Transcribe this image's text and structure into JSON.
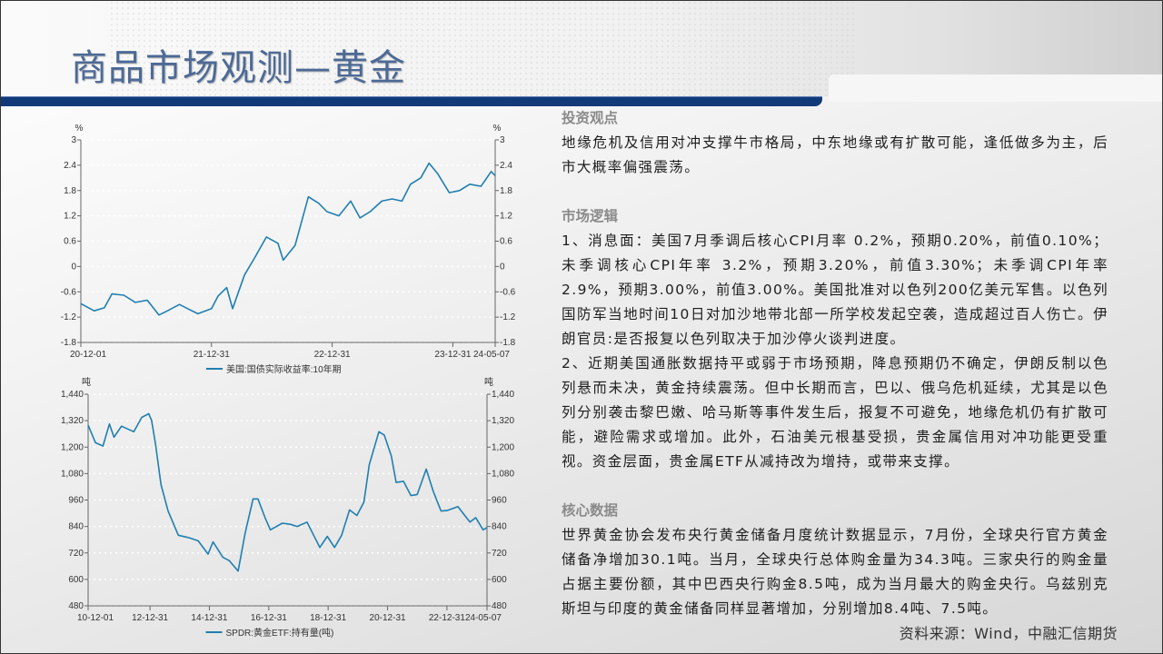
{
  "title": "商品市场观测—黄金",
  "sections": [
    {
      "heading": "投资观点",
      "paragraphs": [
        "地缘危机及信用对冲支撑牛市格局，中东地缘或有扩散可能，逢低做多为主，后市大概率偏强震荡。"
      ]
    },
    {
      "heading": "市场逻辑",
      "paragraphs": [
        "1、消息面：美国7月季调后核心CPI月率 0.2%，预期0.20%，前值0.10%；未季调核心CPI年率 3.2%，预期3.20%，前值3.30%；未季调CPI年率 2.9%，预期3.00%，前值3.00%。美国批准对以色列200亿美元军售。以色列国防军当地时间10日对加沙地带北部一所学校发起空袭，造成超过百人伤亡。伊朗官员:是否报复以色列取决于加沙停火谈判进度。",
        "2、近期美国通胀数据持平或弱于市场预期，降息预期仍不确定，伊朗反制以色列悬而未决，黄金持续震荡。但中长期而言，巴以、俄乌危机延续，尤其是以色列分别袭击黎巴嫩、哈马斯等事件发生后，报复不可避免，地缘危机仍有扩散可能，避险需求或增加。此外，石油美元根基受损，贵金属信用对冲功能更受重视。资金层面，贵金属ETF从减持改为增持，或带来支撑。"
      ]
    },
    {
      "heading": "核心数据",
      "paragraphs": [
        "世界黄金协会发布央行黄金储备月度统计数据显示，7月份，全球央行官方黄金储备净增加30.1吨。当月，全球央行总体购金量为34.3吨。三家央行的购金量占据主要份额，其中巴西央行购金8.5吨，成为当月最大的购金央行。乌兹别克斯坦与印度的黄金储备同样显著增加，分别增加8.4吨、7.5吨。"
      ]
    }
  ],
  "source": "资料来源：Wind，中融汇信期货",
  "colors": {
    "title": "#4d6a96",
    "title_bar": "#133a78",
    "series": "#1f7fb0"
  },
  "chart_data": [
    {
      "type": "line",
      "unit_left": "%",
      "unit_right": "%",
      "ylim": [
        -1.8,
        3
      ],
      "y_ticks": [
        -1.8,
        -1.2,
        -0.6,
        0,
        0.6,
        1.2,
        1.8,
        2.4,
        3
      ],
      "y_tick_labels": [
        "-1.8",
        "-1.2",
        "-0.6",
        "0",
        "0.6",
        "1.2",
        "1.8",
        "2.4",
        "3"
      ],
      "xlim": [
        "2020-12-01",
        "2024-05-07"
      ],
      "x_ticks": [
        {
          "date": "2020-12-01",
          "label": "20-12-01"
        },
        {
          "date": "2021-12-31",
          "label": "21-12-31"
        },
        {
          "date": "2022-12-31",
          "label": "22-12-31"
        },
        {
          "date": "2023-12-31",
          "label": "23-12-31"
        },
        {
          "date": "2024-05-07",
          "label": "24-05-07"
        }
      ],
      "grid": true,
      "legend_position": "bottom",
      "series": [
        {
          "name": "美国:国债实际收益率:10年期",
          "points": [
            [
              "2020-12-01",
              -0.88
            ],
            [
              "2021-01-10",
              -1.05
            ],
            [
              "2021-02-10",
              -0.98
            ],
            [
              "2021-03-05",
              -0.65
            ],
            [
              "2021-04-10",
              -0.68
            ],
            [
              "2021-05-15",
              -0.85
            ],
            [
              "2021-06-20",
              -0.8
            ],
            [
              "2021-07-25",
              -1.15
            ],
            [
              "2021-08-20",
              -1.05
            ],
            [
              "2021-09-25",
              -0.9
            ],
            [
              "2021-10-20",
              -1.0
            ],
            [
              "2021-11-20",
              -1.12
            ],
            [
              "2021-12-31",
              -1.0
            ],
            [
              "2022-01-20",
              -0.7
            ],
            [
              "2022-02-15",
              -0.5
            ],
            [
              "2022-03-05",
              -1.0
            ],
            [
              "2022-04-10",
              -0.2
            ],
            [
              "2022-05-10",
              0.2
            ],
            [
              "2022-06-15",
              0.7
            ],
            [
              "2022-07-20",
              0.55
            ],
            [
              "2022-08-05",
              0.15
            ],
            [
              "2022-09-10",
              0.5
            ],
            [
              "2022-10-20",
              1.65
            ],
            [
              "2022-11-20",
              1.5
            ],
            [
              "2022-12-15",
              1.3
            ],
            [
              "2023-01-20",
              1.2
            ],
            [
              "2023-02-25",
              1.55
            ],
            [
              "2023-03-25",
              1.15
            ],
            [
              "2023-04-25",
              1.3
            ],
            [
              "2023-05-30",
              1.55
            ],
            [
              "2023-06-30",
              1.6
            ],
            [
              "2023-07-30",
              1.55
            ],
            [
              "2023-08-25",
              1.95
            ],
            [
              "2023-09-25",
              2.1
            ],
            [
              "2023-10-20",
              2.45
            ],
            [
              "2023-11-15",
              2.2
            ],
            [
              "2023-12-20",
              1.75
            ],
            [
              "2024-01-20",
              1.8
            ],
            [
              "2024-02-20",
              1.95
            ],
            [
              "2024-03-25",
              1.9
            ],
            [
              "2024-04-25",
              2.25
            ],
            [
              "2024-05-07",
              2.15
            ]
          ]
        }
      ]
    },
    {
      "type": "line",
      "unit_left": "吨",
      "unit_right": "吨",
      "ylim": [
        480,
        1440
      ],
      "y_ticks": [
        480,
        600,
        720,
        840,
        960,
        1080,
        1200,
        1320,
        1440
      ],
      "y_tick_labels": [
        "480",
        "600",
        "720",
        "840",
        "960",
        "1,080",
        "1,200",
        "1,320",
        "1,440"
      ],
      "xlim": [
        "2010-12-01",
        "2024-05-07"
      ],
      "x_ticks": [
        {
          "date": "2010-12-01",
          "label": "10-12-01"
        },
        {
          "date": "2012-12-31",
          "label": "12-12-31"
        },
        {
          "date": "2014-12-31",
          "label": "14-12-31"
        },
        {
          "date": "2016-12-31",
          "label": "16-12-31"
        },
        {
          "date": "2018-12-31",
          "label": "18-12-31"
        },
        {
          "date": "2020-12-31",
          "label": "20-12-31"
        },
        {
          "date": "2022-12-31",
          "label": "22-12-31"
        },
        {
          "date": "2024-05-07",
          "label": "24-05-07"
        }
      ],
      "grid": true,
      "legend_position": "bottom",
      "series": [
        {
          "name": "SPDR:黄金ETF:持有量(吨)",
          "points": [
            [
              "2010-12-01",
              1300
            ],
            [
              "2011-03-01",
              1220
            ],
            [
              "2011-06-01",
              1205
            ],
            [
              "2011-08-20",
              1305
            ],
            [
              "2011-10-15",
              1245
            ],
            [
              "2012-01-15",
              1295
            ],
            [
              "2012-06-15",
              1270
            ],
            [
              "2012-09-20",
              1335
            ],
            [
              "2012-12-15",
              1352
            ],
            [
              "2013-01-20",
              1320
            ],
            [
              "2013-03-10",
              1210
            ],
            [
              "2013-05-15",
              1030
            ],
            [
              "2013-08-10",
              910
            ],
            [
              "2013-12-15",
              800
            ],
            [
              "2014-04-15",
              790
            ],
            [
              "2014-08-15",
              775
            ],
            [
              "2014-12-15",
              715
            ],
            [
              "2015-02-15",
              770
            ],
            [
              "2015-06-15",
              700
            ],
            [
              "2015-09-01",
              685
            ],
            [
              "2015-12-20",
              638
            ],
            [
              "2016-03-15",
              810
            ],
            [
              "2016-06-20",
              965
            ],
            [
              "2016-08-20",
              965
            ],
            [
              "2016-11-20",
              875
            ],
            [
              "2017-01-20",
              825
            ],
            [
              "2017-06-15",
              855
            ],
            [
              "2017-09-20",
              850
            ],
            [
              "2017-12-15",
              840
            ],
            [
              "2018-04-15",
              860
            ],
            [
              "2018-09-20",
              745
            ],
            [
              "2018-12-20",
              795
            ],
            [
              "2019-03-20",
              745
            ],
            [
              "2019-06-15",
              800
            ],
            [
              "2019-09-20",
              915
            ],
            [
              "2019-12-20",
              890
            ],
            [
              "2020-03-15",
              950
            ],
            [
              "2020-05-20",
              1120
            ],
            [
              "2020-09-15",
              1270
            ],
            [
              "2020-11-20",
              1255
            ],
            [
              "2021-02-15",
              1160
            ],
            [
              "2021-04-15",
              1040
            ],
            [
              "2021-07-15",
              1045
            ],
            [
              "2021-10-15",
              980
            ],
            [
              "2021-12-31",
              985
            ],
            [
              "2022-04-20",
              1100
            ],
            [
              "2022-07-15",
              1000
            ],
            [
              "2022-10-20",
              910
            ],
            [
              "2022-12-31",
              912
            ],
            [
              "2023-05-15",
              930
            ],
            [
              "2023-10-10",
              860
            ],
            [
              "2023-12-20",
              880
            ],
            [
              "2024-03-20",
              825
            ],
            [
              "2024-05-07",
              835
            ]
          ]
        }
      ]
    }
  ]
}
